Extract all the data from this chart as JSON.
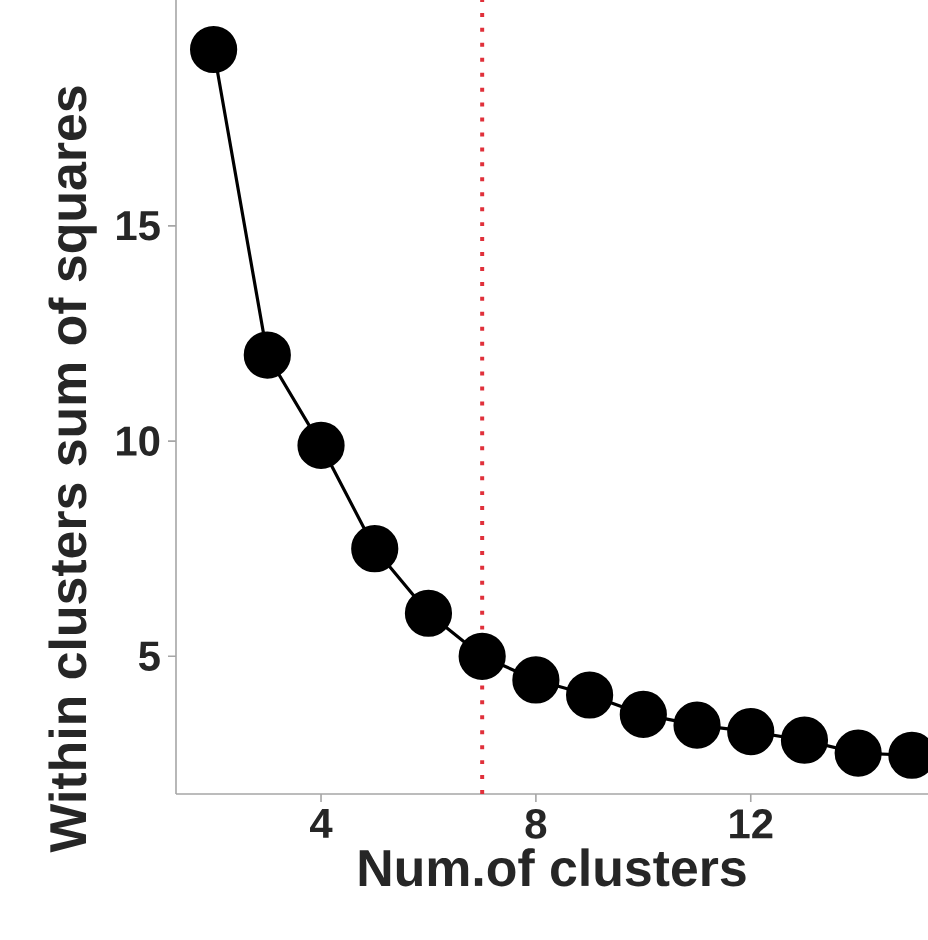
{
  "chart_data": {
    "type": "line",
    "xlabel": "Num.of clusters",
    "ylabel": "Within clusters sum of squares",
    "x": [
      2,
      3,
      4,
      5,
      6,
      7,
      8,
      9,
      10,
      11,
      12,
      13,
      14,
      15
    ],
    "series": [
      {
        "color": "#000000",
        "values": [
          19.1,
          12.0,
          9.9,
          7.5,
          6.0,
          5.0,
          4.45,
          4.1,
          3.65,
          3.4,
          3.25,
          3.05,
          2.75,
          2.7
        ]
      }
    ],
    "marker": "circle",
    "line_style": "solid",
    "xlim": [
      1.3,
      15.3
    ],
    "ylim": [
      1.8,
      20.25
    ],
    "xticks": [
      4,
      8,
      12
    ],
    "yticks": [
      5,
      10,
      15
    ],
    "grid": false,
    "ref_lines": [
      {
        "axis": "x",
        "value": 7,
        "color": "#e0303a",
        "line_style": "dotted"
      }
    ]
  }
}
